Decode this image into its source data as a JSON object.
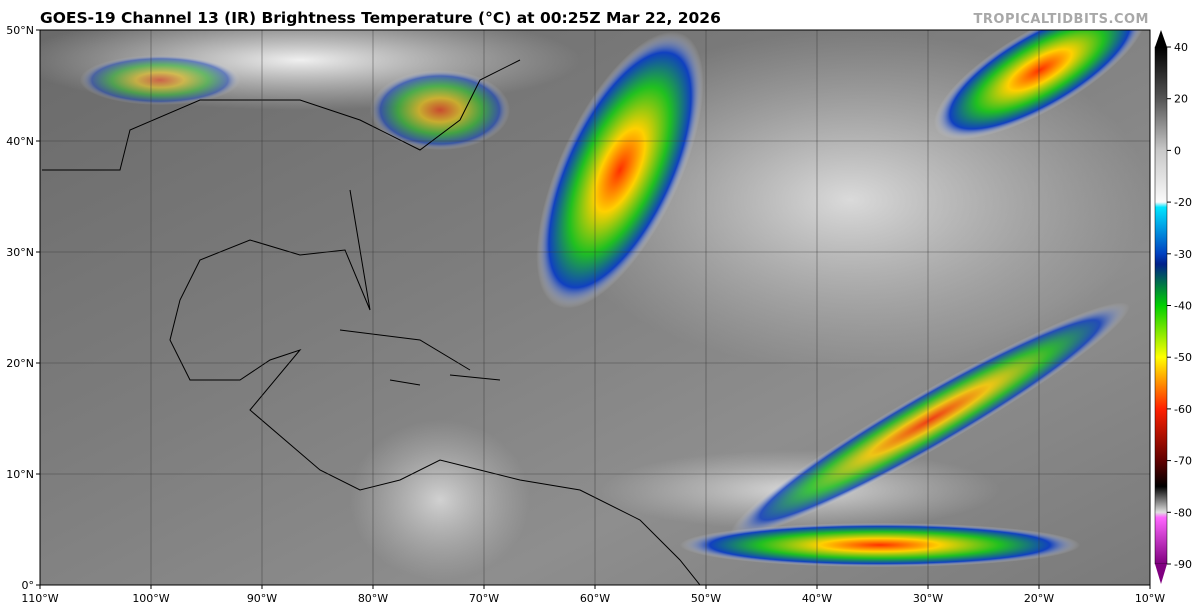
{
  "title": "GOES-19 Channel 13 (IR) Brightness Temperature (°C) at 00:25Z Mar 22, 2026",
  "watermark": "TROPICALTIDBITS.COM",
  "map": {
    "lonlim": [
      -110,
      -10
    ],
    "latlim": [
      0,
      50
    ],
    "lonticks": [
      {
        "value": -110,
        "label": "110°W"
      },
      {
        "value": -100,
        "label": "100°W"
      },
      {
        "value": -90,
        "label": "90°W"
      },
      {
        "value": -80,
        "label": "80°W"
      },
      {
        "value": -70,
        "label": "70°W"
      },
      {
        "value": -60,
        "label": "60°W"
      },
      {
        "value": -50,
        "label": "50°W"
      },
      {
        "value": -40,
        "label": "40°W"
      },
      {
        "value": -30,
        "label": "30°W"
      },
      {
        "value": -20,
        "label": "20°W"
      },
      {
        "value": -10,
        "label": "10°W"
      }
    ],
    "latticks": [
      {
        "value": 0,
        "label": "0°"
      },
      {
        "value": 10,
        "label": "10°N"
      },
      {
        "value": 20,
        "label": "20°N"
      },
      {
        "value": 30,
        "label": "30°N"
      },
      {
        "value": 40,
        "label": "40°N"
      },
      {
        "value": 50,
        "label": "50°N"
      }
    ]
  },
  "colorbar": {
    "ticks": [
      40,
      20,
      0,
      -20,
      -30,
      -40,
      -50,
      -60,
      -70,
      -80,
      -90
    ]
  }
}
